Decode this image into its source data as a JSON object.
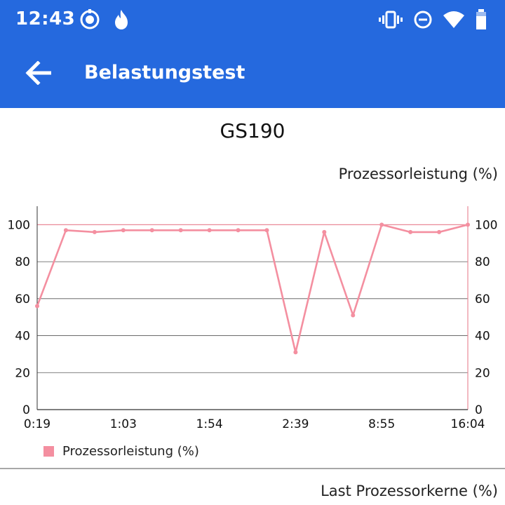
{
  "status_bar": {
    "time": "12:43",
    "left_icons": [
      "record-icon",
      "flame-icon"
    ],
    "right_icons": [
      "vibrate-icon",
      "dnd-icon",
      "wifi-icon",
      "battery-icon"
    ]
  },
  "app_bar": {
    "title": "Belastungstest",
    "back_icon": "arrow-left-icon",
    "color": "#2569de"
  },
  "colors": {
    "series": "#f48fa0",
    "grid": "#555555",
    "limit_line": "#e98a98"
  },
  "chart_data": {
    "type": "line",
    "title": "GS190",
    "ylabel": "Prozessorleistung (%)",
    "ylim": [
      0,
      110
    ],
    "yticks": [
      0,
      20,
      40,
      60,
      80,
      100
    ],
    "limit_line": 100,
    "x_tick_labels": [
      "0:19",
      "1:03",
      "1:54",
      "2:39",
      "8:55",
      "16:04"
    ],
    "series": [
      {
        "name": "Prozessorleistung (%)",
        "values": [
          56,
          97,
          96,
          97,
          97,
          97,
          97,
          97,
          97,
          31,
          96,
          51,
          100,
          96,
          96,
          100
        ]
      }
    ],
    "legend_position": "bottom-left",
    "grid": true
  },
  "next_section": {
    "axis_label": "Last Prozessorkerne (%)"
  }
}
